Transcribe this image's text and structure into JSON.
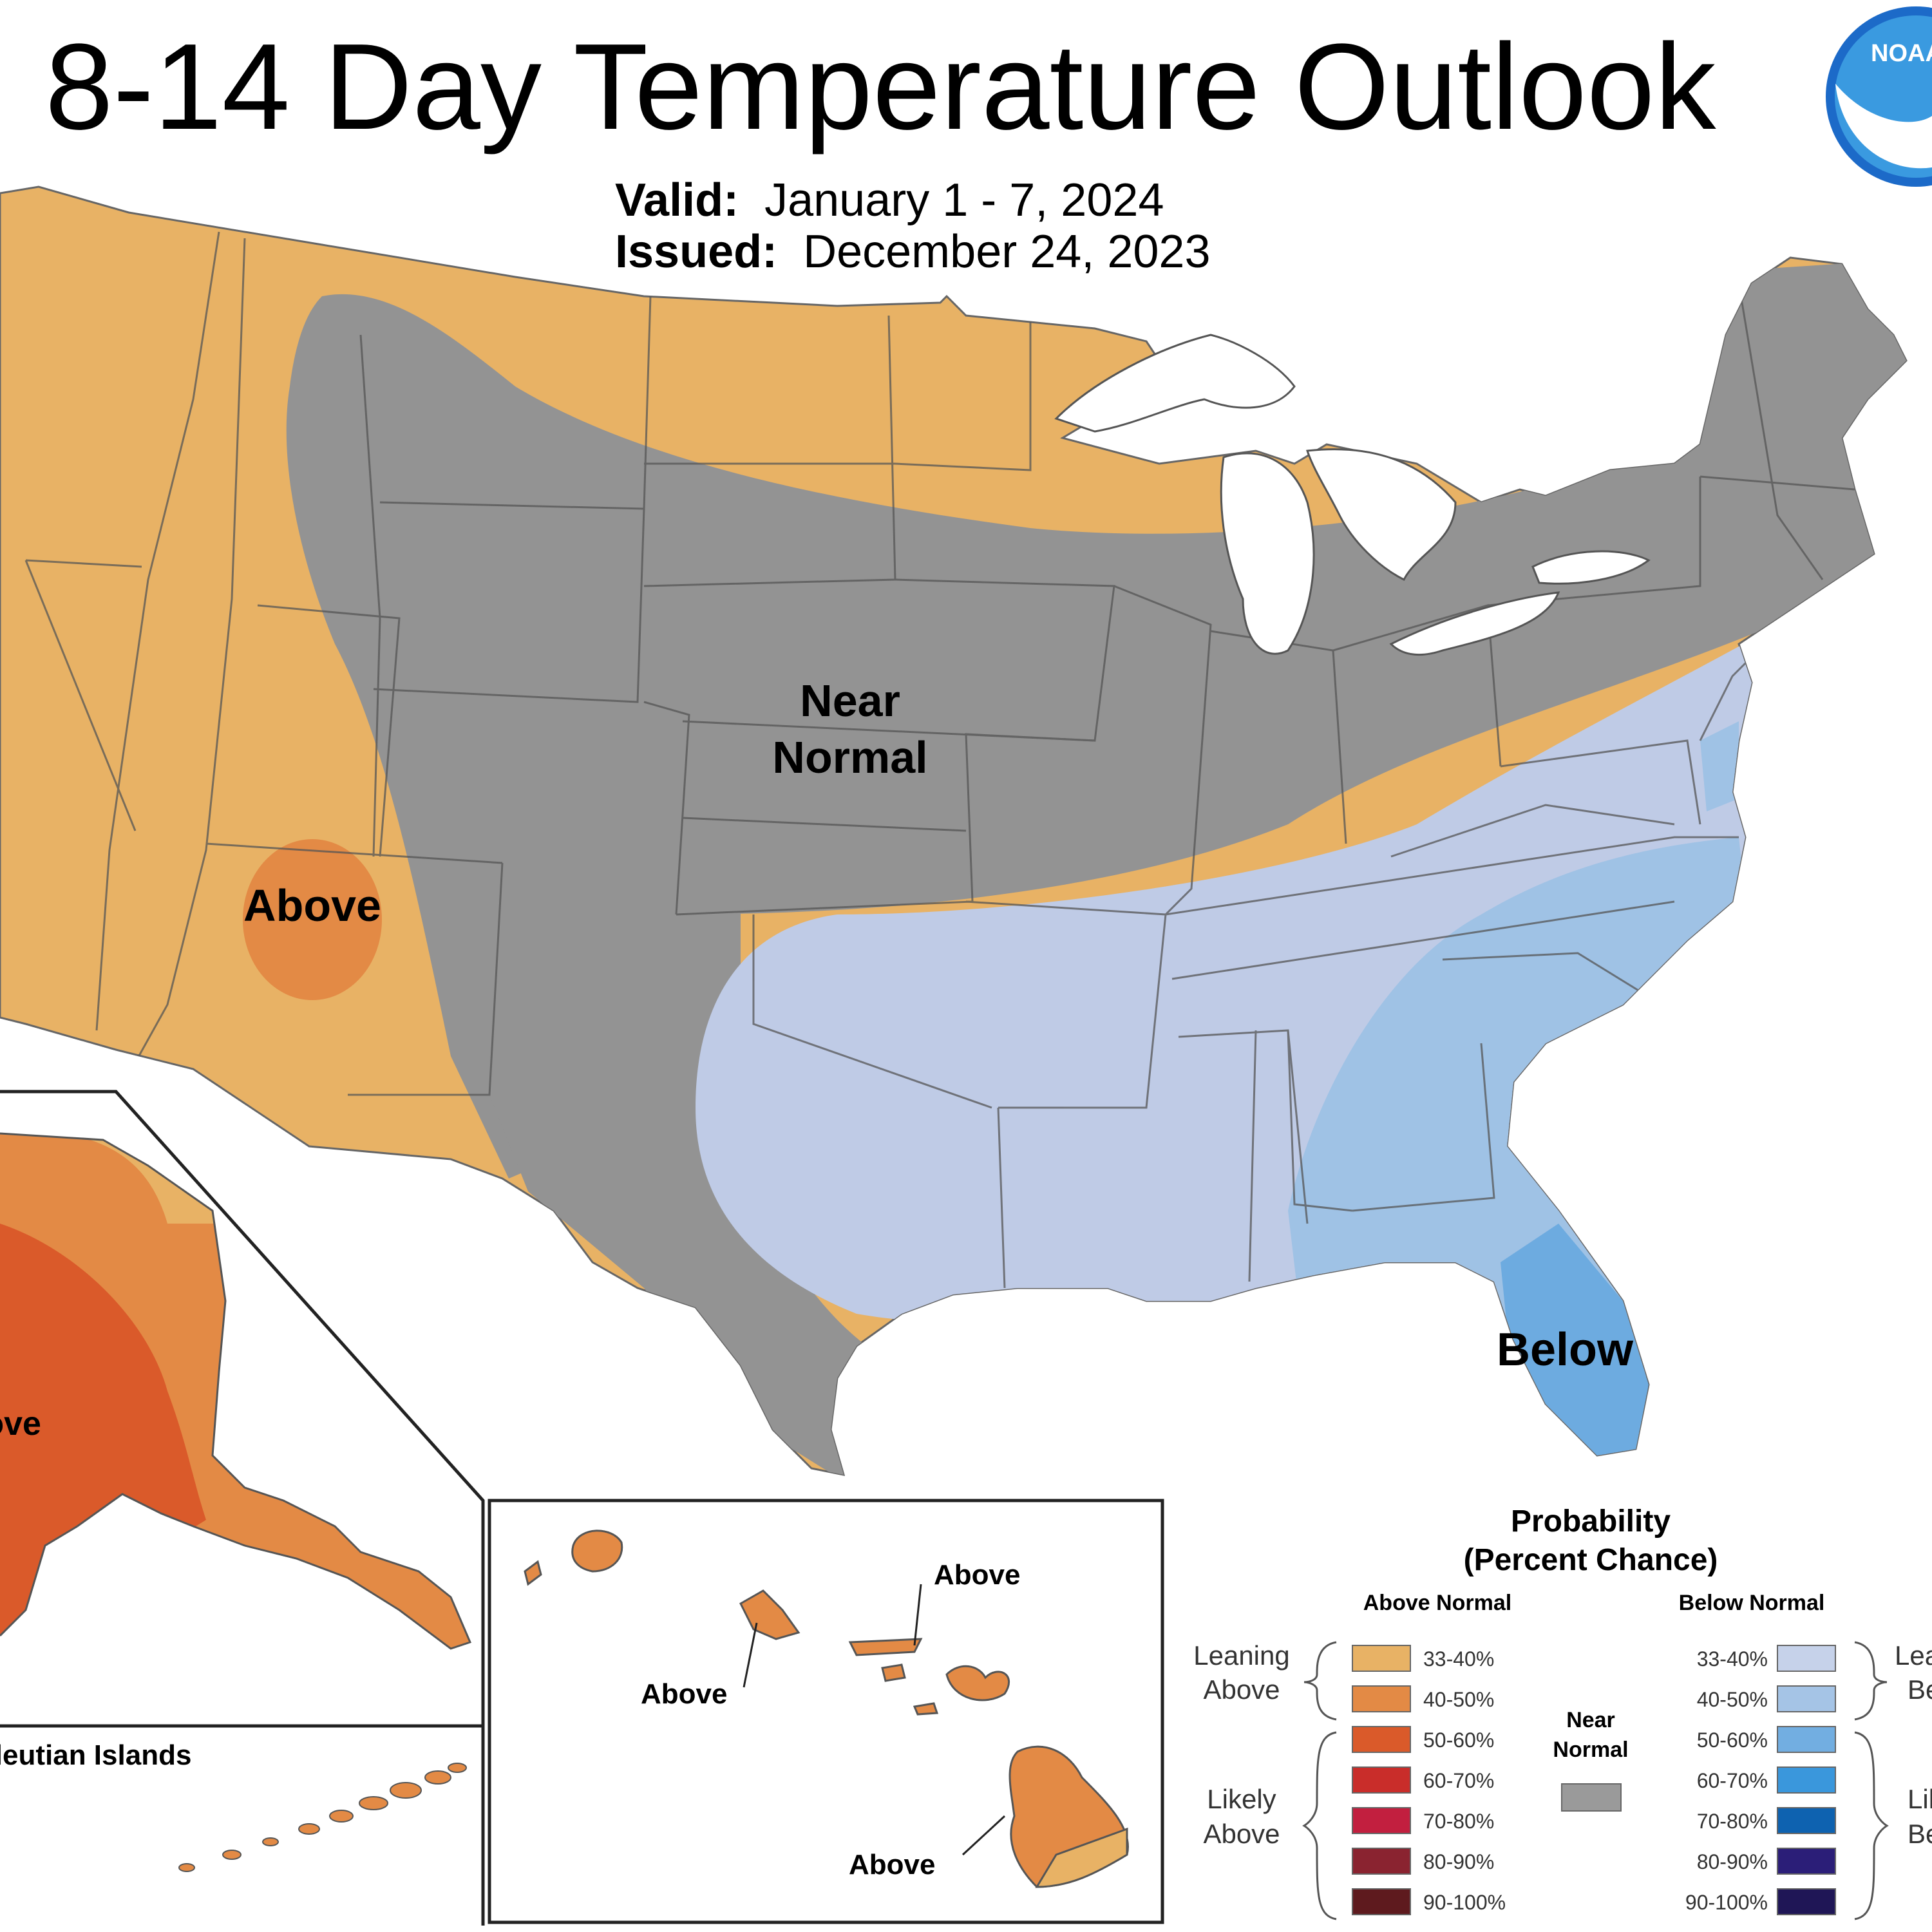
{
  "header": {
    "title": "8-14 Day Temperature Outlook",
    "valid_label": "Valid:",
    "valid_value": "January 1 - 7, 2024",
    "issued_label": "Issued:",
    "issued_value": "December 24, 2023",
    "logo_text": "NOAA"
  },
  "map": {
    "labels": {
      "near_normal_1": "Near",
      "near_normal_2": "Normal",
      "above_southwest": "Above",
      "below_southeast": "Below",
      "above_alaska": "Above",
      "aleutian": "Aleutian Islands",
      "above_hi_1": "Above",
      "above_hi_2": "Above",
      "above_hi_3": "Above"
    },
    "colors": {
      "above_33_40": "#e8b265",
      "above_40_50": "#e38a45",
      "above_50_60": "#da5a2a",
      "near_normal": "#939393",
      "below_33_40": "#bfcbe6",
      "below_40_50": "#9fc2e5",
      "below_50_60": "#6dabe0"
    }
  },
  "legend": {
    "title_1": "Probability",
    "title_2": "(Percent Chance)",
    "above_header": "Above Normal",
    "below_header": "Below Normal",
    "leaning_above_1": "Leaning",
    "leaning_above_2": "Above",
    "likely_above_1": "Likely",
    "likely_above_2": "Above",
    "leaning_below_1": "Leaning",
    "leaning_below_2": "Below",
    "likely_below_1": "Likely",
    "likely_below_2": "Below",
    "near_normal_1": "Near",
    "near_normal_2": "Normal",
    "near_normal_color": "#9a9a9a",
    "above": [
      {
        "range": "33-40%",
        "color": "#e8b265"
      },
      {
        "range": "40-50%",
        "color": "#e38a45"
      },
      {
        "range": "50-60%",
        "color": "#da5a2a"
      },
      {
        "range": "60-70%",
        "color": "#c92d2a"
      },
      {
        "range": "70-80%",
        "color": "#c21f3f"
      },
      {
        "range": "80-90%",
        "color": "#8a2330"
      },
      {
        "range": "90-100%",
        "color": "#5e1a1e"
      }
    ],
    "below": [
      {
        "range": "33-40%",
        "color": "#c6d2ea"
      },
      {
        "range": "40-50%",
        "color": "#a5c4e6"
      },
      {
        "range": "50-60%",
        "color": "#72aee1"
      },
      {
        "range": "60-70%",
        "color": "#3a97dc"
      },
      {
        "range": "70-80%",
        "color": "#0e62b0"
      },
      {
        "range": "80-90%",
        "color": "#2b1e78"
      },
      {
        "range": "90-100%",
        "color": "#1f1656"
      }
    ]
  }
}
